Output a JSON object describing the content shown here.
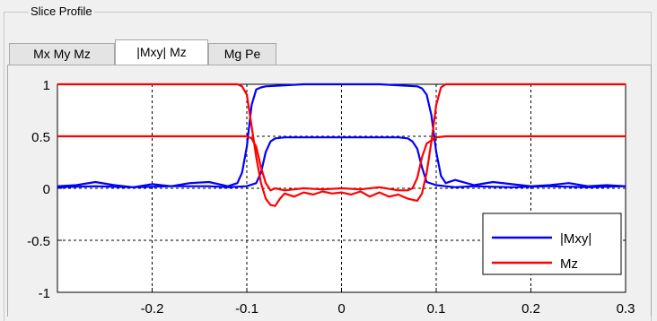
{
  "group": {
    "title": "Slice Profile"
  },
  "tabs": [
    {
      "label": "Mx My Mz",
      "active": false
    },
    {
      "label": "|Mxy| Mz",
      "active": true
    },
    {
      "label": "Mg Pe",
      "active": false
    }
  ],
  "chart_data": {
    "type": "line",
    "xlim": [
      -0.3,
      0.3
    ],
    "ylim": [
      -1,
      1
    ],
    "xticks": [
      "-0.2",
      "-0.1",
      "0",
      "0.1",
      "0.2",
      "0.3"
    ],
    "xtick_values": [
      -0.2,
      -0.1,
      0,
      0.1,
      0.2,
      0.3
    ],
    "yticks": [
      "1",
      "0.5",
      "0",
      "-0.5",
      "-1"
    ],
    "ytick_values": [
      1,
      0.5,
      0,
      -0.5,
      -1
    ],
    "grid": true,
    "legend_position": "bottom-right",
    "series": [
      {
        "name": "|Mxy|",
        "color": "#0000ff",
        "x": [
          -0.3,
          -0.28,
          -0.26,
          -0.24,
          -0.22,
          -0.2,
          -0.18,
          -0.16,
          -0.14,
          -0.12,
          -0.11,
          -0.105,
          -0.1,
          -0.095,
          -0.09,
          -0.085,
          -0.08,
          -0.06,
          -0.04,
          -0.02,
          0,
          0.02,
          0.04,
          0.06,
          0.08,
          0.085,
          0.09,
          0.095,
          0.1,
          0.105,
          0.11,
          0.12,
          0.14,
          0.16,
          0.18,
          0.2,
          0.22,
          0.24,
          0.26,
          0.28,
          0.3
        ],
        "y": [
          0.02,
          0.03,
          0.06,
          0.03,
          0.01,
          0.04,
          0.02,
          0.05,
          0.06,
          0.02,
          0.05,
          0.15,
          0.4,
          0.8,
          0.95,
          0.97,
          0.98,
          0.99,
          1,
          1,
          1,
          1,
          1,
          0.99,
          0.98,
          0.96,
          0.9,
          0.7,
          0.35,
          0.12,
          0.05,
          0.08,
          0.03,
          0.06,
          0.04,
          0.02,
          0.03,
          0.05,
          0.02,
          0.03,
          0.02
        ]
      },
      {
        "name": "|Mxy|",
        "color": "#0000ff",
        "x": [
          -0.3,
          -0.26,
          -0.22,
          -0.18,
          -0.14,
          -0.12,
          -0.1,
          -0.09,
          -0.085,
          -0.08,
          -0.075,
          -0.07,
          -0.06,
          -0.04,
          -0.02,
          0,
          0.02,
          0.04,
          0.06,
          0.07,
          0.075,
          0.08,
          0.085,
          0.09,
          0.1,
          0.11,
          0.12,
          0.14,
          0.18,
          0.22,
          0.26,
          0.3
        ],
        "y": [
          0.01,
          0.02,
          0.01,
          0.02,
          0.02,
          0.01,
          0.02,
          0.05,
          0.15,
          0.35,
          0.45,
          0.48,
          0.49,
          0.49,
          0.49,
          0.49,
          0.49,
          0.49,
          0.49,
          0.48,
          0.45,
          0.38,
          0.2,
          0.06,
          0.03,
          0.02,
          0.01,
          0.02,
          0.01,
          0.02,
          0.01,
          0.02
        ]
      },
      {
        "name": "Mz",
        "color": "#ff0000",
        "x": [
          -0.3,
          -0.15,
          -0.11,
          -0.105,
          -0.1,
          -0.095,
          -0.09,
          -0.085,
          -0.08,
          -0.075,
          -0.07,
          -0.065,
          -0.06,
          -0.05,
          -0.04,
          -0.03,
          -0.02,
          -0.01,
          0,
          0.01,
          0.02,
          0.03,
          0.04,
          0.05,
          0.06,
          0.07,
          0.08,
          0.085,
          0.09,
          0.095,
          0.1,
          0.105,
          0.11,
          0.15,
          0.3
        ],
        "y": [
          1,
          1,
          1,
          0.98,
          0.9,
          0.6,
          0.3,
          0.05,
          -0.1,
          -0.16,
          -0.17,
          -0.1,
          -0.05,
          -0.08,
          -0.04,
          -0.06,
          -0.03,
          -0.05,
          -0.04,
          -0.06,
          -0.03,
          -0.08,
          -0.04,
          -0.08,
          -0.06,
          -0.1,
          -0.12,
          -0.05,
          0.15,
          0.45,
          0.8,
          0.97,
          1,
          1,
          1
        ]
      },
      {
        "name": "Mz",
        "color": "#ff0000",
        "x": [
          -0.3,
          -0.12,
          -0.1,
          -0.095,
          -0.09,
          -0.085,
          -0.08,
          -0.075,
          -0.07,
          -0.06,
          -0.04,
          -0.02,
          0,
          0.02,
          0.04,
          0.06,
          0.07,
          0.075,
          0.08,
          0.085,
          0.09,
          0.1,
          0.11,
          0.12,
          0.3
        ],
        "y": [
          0.5,
          0.5,
          0.5,
          0.48,
          0.4,
          0.2,
          0.05,
          -0.02,
          0,
          -0.02,
          0,
          -0.01,
          0,
          -0.01,
          0.01,
          -0.02,
          -0.02,
          0,
          0.1,
          0.3,
          0.43,
          0.49,
          0.5,
          0.5,
          0.5
        ]
      }
    ],
    "legend": [
      {
        "label": "|Mxy|",
        "color": "#0000ff"
      },
      {
        "label": "Mz",
        "color": "#ff0000"
      }
    ]
  }
}
